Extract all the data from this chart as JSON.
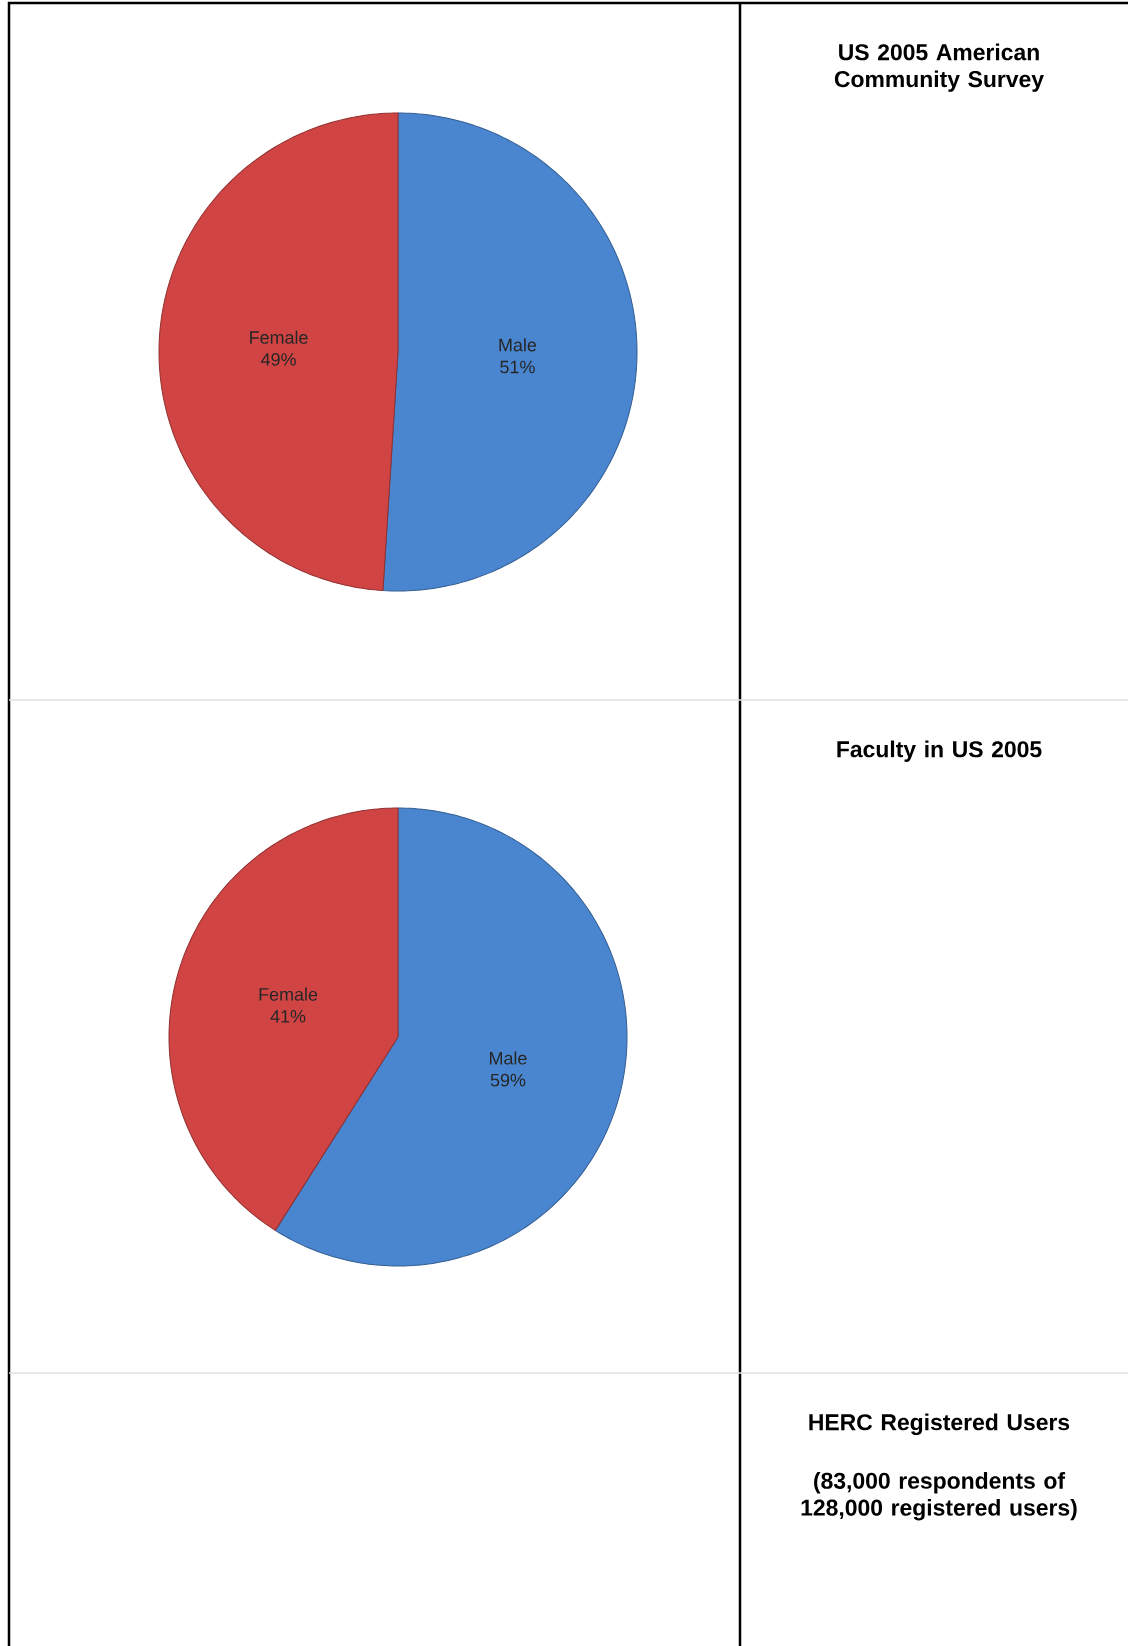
{
  "chart_data": [
    {
      "type": "pie",
      "title": "US 2005 American Community Survey",
      "categories": [
        "Male",
        "Female"
      ],
      "values": [
        51,
        49
      ],
      "value_labels": [
        "51%",
        "49%"
      ],
      "colors": [
        "#4a86d0",
        "#d04444"
      ]
    },
    {
      "type": "pie",
      "title": "Faculty in US 2005",
      "categories": [
        "Male",
        "Female"
      ],
      "values": [
        59,
        41
      ],
      "value_labels": [
        "59%",
        "41%"
      ],
      "colors": [
        "#4a86d0",
        "#d04444"
      ]
    },
    {
      "type": "other",
      "title": "HERC Registered Users",
      "subtitle": "(83,000 respondents of 128,000 registered users)"
    }
  ]
}
